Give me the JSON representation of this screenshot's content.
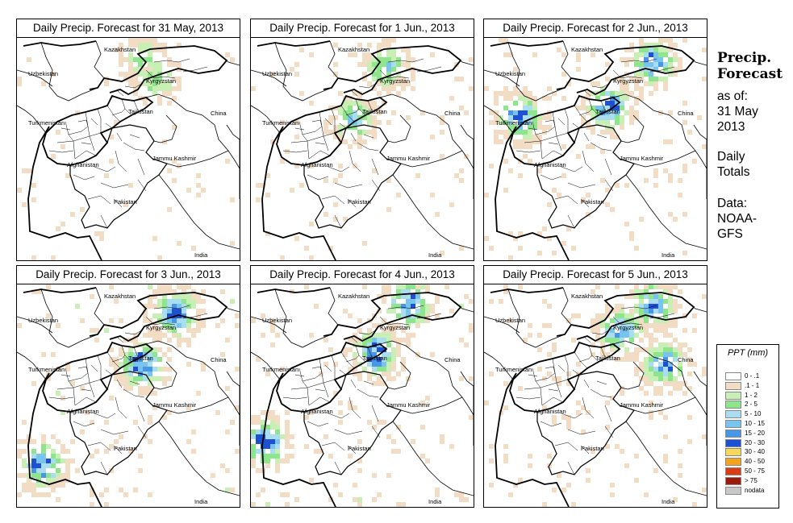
{
  "panels": [
    {
      "title": "Daily Precip. Forecast for  31 May, 2013",
      "intensity": 0.6,
      "seed": 11,
      "hotspots": [
        [
          0.62,
          0.18
        ],
        [
          0.55,
          0.08
        ]
      ]
    },
    {
      "title": "Daily Precip. Forecast for  1 Jun., 2013",
      "intensity": 0.9,
      "seed": 23,
      "hotspots": [
        [
          0.6,
          0.12
        ],
        [
          0.45,
          0.35
        ]
      ]
    },
    {
      "title": "Daily Precip. Forecast for  2 Jun., 2013",
      "intensity": 1.3,
      "seed": 37,
      "hotspots": [
        [
          0.55,
          0.3
        ],
        [
          0.75,
          0.1
        ],
        [
          0.15,
          0.35
        ]
      ]
    },
    {
      "title": "Daily Precip. Forecast for  3 Jun., 2013",
      "intensity": 1.4,
      "seed": 41,
      "hotspots": [
        [
          0.55,
          0.35
        ],
        [
          0.7,
          0.12
        ],
        [
          0.1,
          0.8
        ]
      ]
    },
    {
      "title": "Daily Precip. Forecast for  4 Jun., 2013",
      "intensity": 1.4,
      "seed": 53,
      "hotspots": [
        [
          0.55,
          0.3
        ],
        [
          0.7,
          0.08
        ],
        [
          0.05,
          0.7
        ]
      ]
    },
    {
      "title": "Daily Precip. Forecast for  5 Jun., 2013",
      "intensity": 1.2,
      "seed": 67,
      "hotspots": [
        [
          0.8,
          0.35
        ],
        [
          0.6,
          0.2
        ],
        [
          0.75,
          0.08
        ]
      ]
    }
  ],
  "map_labels": {
    "kazakhstan": "Kazakhstan",
    "uzbekistan": "Uzbekistan",
    "kyrgyzstan": "Kyrgyzstan",
    "tajikistan": "Tajikistan",
    "turkmenistan": "Turkmenistan",
    "china": "China",
    "afghanistan": "Afghanistan",
    "jammu_kashmir": "Jammu Kashmir",
    "pakistan": "Pakistan",
    "india": "India"
  },
  "side": {
    "title_line1": "Precip.",
    "title_line2": "Forecast",
    "asof_line1": "as of:",
    "asof_line2": "31 May",
    "asof_line3": "2013",
    "totals_line1": "Daily",
    "totals_line2": "Totals",
    "data_line1": "Data:",
    "data_line2": "NOAA-",
    "data_line3": "GFS"
  },
  "legend": {
    "title": "PPT (mm)",
    "items": [
      {
        "label": "0 - .1",
        "color": "#ffffff"
      },
      {
        "label": ".1 - 1",
        "color": "#f2dcc4"
      },
      {
        "label": "1 - 2",
        "color": "#c8f0b4"
      },
      {
        "label": "2 - 5",
        "color": "#8ee68c"
      },
      {
        "label": "5 - 10",
        "color": "#aaddf0"
      },
      {
        "label": "10 - 15",
        "color": "#78c4ee"
      },
      {
        "label": "15 - 20",
        "color": "#4896e8"
      },
      {
        "label": "20 - 30",
        "color": "#1e50d2"
      },
      {
        "label": "30 - 40",
        "color": "#f7d85a"
      },
      {
        "label": "40 - 50",
        "color": "#f5a21e"
      },
      {
        "label": "50 - 75",
        "color": "#dc3c14"
      },
      {
        "label": "> 75",
        "color": "#9b1a0a"
      },
      {
        "label": "nodata",
        "color": "#c8c8c8"
      }
    ]
  }
}
